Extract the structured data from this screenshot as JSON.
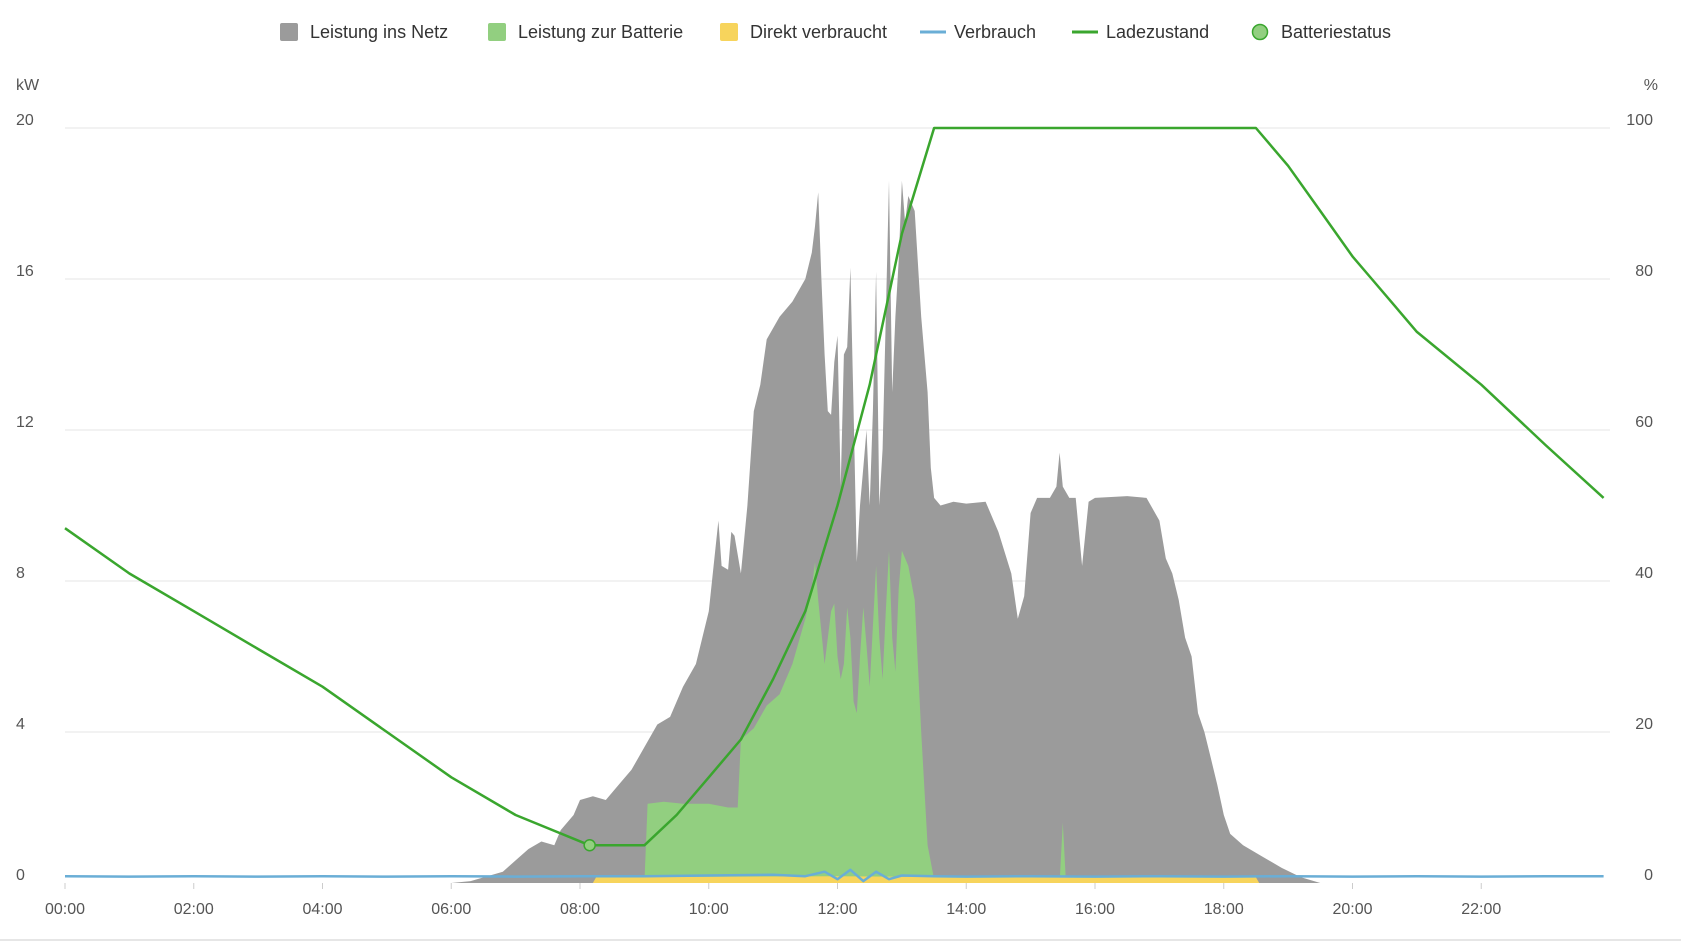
{
  "chart_data": {
    "type": "area",
    "x_unit": "time",
    "y_left": {
      "unit": "kW",
      "range": [
        0,
        20
      ],
      "ticks": [
        "0",
        "4",
        "8",
        "12",
        "16",
        "20"
      ]
    },
    "y_right": {
      "unit": "%",
      "range": [
        0,
        100
      ],
      "ticks": [
        "0",
        "20",
        "40",
        "60",
        "80",
        "100"
      ]
    },
    "x_range": [
      0,
      24
    ],
    "x_ticks": [
      "00:00",
      "02:00",
      "04:00",
      "06:00",
      "08:00",
      "10:00",
      "12:00",
      "14:00",
      "16:00",
      "18:00",
      "20:00",
      "22:00"
    ],
    "grid": true,
    "legend_placement": "top-center",
    "legend": [
      {
        "name": "Leistung ins Netz",
        "symbol": "square",
        "color": "#9b9b9b"
      },
      {
        "name": "Leistung zur Batterie",
        "symbol": "square",
        "color": "#92cf80"
      },
      {
        "name": "Direkt verbraucht",
        "symbol": "square",
        "color": "#f7d45c"
      },
      {
        "name": "Verbrauch",
        "symbol": "line",
        "color": "#6aaed6"
      },
      {
        "name": "Ladezustand",
        "symbol": "line",
        "color": "#3aa62e"
      },
      {
        "name": "Batteriestatus",
        "symbol": "circle",
        "color": "#92cf80"
      }
    ],
    "series": [
      {
        "name": "Leistung ins Netz",
        "axis": "left",
        "stack": "total",
        "points": [
          [
            6.0,
            0
          ],
          [
            6.3,
            0.05
          ],
          [
            6.6,
            0.2
          ],
          [
            6.8,
            0.3
          ],
          [
            7.0,
            0.6
          ],
          [
            7.2,
            0.9
          ],
          [
            7.4,
            1.1
          ],
          [
            7.6,
            1.0
          ],
          [
            7.7,
            1.4
          ],
          [
            7.9,
            1.8
          ],
          [
            8.0,
            2.2
          ],
          [
            8.2,
            2.3
          ],
          [
            8.4,
            2.2
          ],
          [
            8.6,
            2.6
          ],
          [
            8.8,
            3.0
          ],
          [
            9.0,
            3.6
          ],
          [
            9.2,
            4.2
          ],
          [
            9.4,
            4.4
          ],
          [
            9.6,
            5.2
          ],
          [
            9.8,
            5.8
          ],
          [
            10.0,
            7.2
          ],
          [
            10.1,
            8.8
          ],
          [
            10.15,
            9.6
          ],
          [
            10.2,
            8.4
          ],
          [
            10.3,
            8.3
          ],
          [
            10.35,
            9.3
          ],
          [
            10.4,
            9.2
          ],
          [
            10.5,
            8.2
          ],
          [
            10.6,
            10.0
          ],
          [
            10.7,
            12.5
          ],
          [
            10.8,
            13.2
          ],
          [
            10.9,
            14.4
          ],
          [
            11.1,
            15.0
          ],
          [
            11.3,
            15.4
          ],
          [
            11.5,
            16.0
          ],
          [
            11.6,
            16.7
          ],
          [
            11.65,
            17.4
          ],
          [
            11.7,
            18.3
          ],
          [
            11.75,
            16.0
          ],
          [
            11.8,
            14.0
          ],
          [
            11.85,
            12.5
          ],
          [
            11.9,
            12.4
          ],
          [
            11.95,
            13.8
          ],
          [
            12.0,
            14.5
          ],
          [
            12.05,
            10.5
          ],
          [
            12.1,
            14.0
          ],
          [
            12.15,
            14.2
          ],
          [
            12.2,
            16.3
          ],
          [
            12.25,
            12.5
          ],
          [
            12.3,
            8.5
          ],
          [
            12.35,
            10.0
          ],
          [
            12.4,
            11.0
          ],
          [
            12.45,
            12.0
          ],
          [
            12.5,
            10.0
          ],
          [
            12.55,
            12.5
          ],
          [
            12.6,
            16.2
          ],
          [
            12.65,
            10.0
          ],
          [
            12.7,
            11.5
          ],
          [
            12.75,
            15.0
          ],
          [
            12.8,
            18.6
          ],
          [
            12.85,
            13.0
          ],
          [
            12.9,
            15.0
          ],
          [
            12.95,
            16.5
          ],
          [
            13.0,
            18.6
          ],
          [
            13.05,
            17.5
          ],
          [
            13.1,
            18.2
          ],
          [
            13.2,
            17.8
          ],
          [
            13.3,
            15.0
          ],
          [
            13.4,
            13.0
          ],
          [
            13.45,
            11.0
          ],
          [
            13.5,
            10.2
          ],
          [
            13.6,
            10.0
          ],
          [
            13.8,
            10.1
          ],
          [
            14.0,
            10.05
          ],
          [
            14.3,
            10.1
          ],
          [
            14.5,
            9.3
          ],
          [
            14.7,
            8.2
          ],
          [
            14.8,
            7.0
          ],
          [
            14.9,
            7.6
          ],
          [
            15.0,
            9.8
          ],
          [
            15.1,
            10.2
          ],
          [
            15.3,
            10.2
          ],
          [
            15.4,
            10.5
          ],
          [
            15.45,
            11.4
          ],
          [
            15.5,
            10.5
          ],
          [
            15.6,
            10.2
          ],
          [
            15.7,
            10.2
          ],
          [
            15.8,
            8.4
          ],
          [
            15.9,
            10.1
          ],
          [
            16.0,
            10.2
          ],
          [
            16.5,
            10.25
          ],
          [
            16.8,
            10.2
          ],
          [
            17.0,
            9.6
          ],
          [
            17.1,
            8.6
          ],
          [
            17.2,
            8.2
          ],
          [
            17.3,
            7.5
          ],
          [
            17.4,
            6.5
          ],
          [
            17.5,
            6.0
          ],
          [
            17.6,
            4.5
          ],
          [
            17.7,
            4.0
          ],
          [
            17.8,
            3.3
          ],
          [
            17.9,
            2.6
          ],
          [
            18.0,
            1.8
          ],
          [
            18.1,
            1.3
          ],
          [
            18.3,
            1.0
          ],
          [
            18.6,
            0.7
          ],
          [
            18.9,
            0.4
          ],
          [
            19.2,
            0.15
          ],
          [
            19.5,
            0
          ]
        ]
      },
      {
        "name": "Leistung zur Batterie",
        "axis": "left",
        "stack": "top",
        "points": [
          [
            9.0,
            0
          ],
          [
            9.05,
            2.1
          ],
          [
            9.3,
            2.15
          ],
          [
            9.6,
            2.1
          ],
          [
            10.0,
            2.1
          ],
          [
            10.3,
            2.0
          ],
          [
            10.45,
            2.0
          ],
          [
            10.5,
            3.8
          ],
          [
            10.7,
            4.1
          ],
          [
            10.9,
            4.7
          ],
          [
            11.1,
            5.0
          ],
          [
            11.3,
            5.8
          ],
          [
            11.5,
            7.0
          ],
          [
            11.6,
            7.8
          ],
          [
            11.65,
            8.5
          ],
          [
            11.7,
            7.5
          ],
          [
            11.8,
            5.8
          ],
          [
            11.9,
            7.2
          ],
          [
            11.95,
            7.4
          ],
          [
            12.0,
            6.0
          ],
          [
            12.05,
            5.4
          ],
          [
            12.1,
            5.8
          ],
          [
            12.15,
            7.3
          ],
          [
            12.2,
            6.5
          ],
          [
            12.25,
            4.8
          ],
          [
            12.3,
            4.5
          ],
          [
            12.35,
            6.0
          ],
          [
            12.4,
            7.3
          ],
          [
            12.45,
            6.3
          ],
          [
            12.5,
            5.2
          ],
          [
            12.6,
            8.4
          ],
          [
            12.65,
            6.5
          ],
          [
            12.7,
            5.4
          ],
          [
            12.75,
            7.2
          ],
          [
            12.8,
            8.8
          ],
          [
            12.85,
            6.5
          ],
          [
            12.9,
            5.6
          ],
          [
            12.95,
            7.8
          ],
          [
            13.0,
            8.8
          ],
          [
            13.1,
            8.4
          ],
          [
            13.2,
            7.5
          ],
          [
            13.3,
            4.0
          ],
          [
            13.4,
            1.0
          ],
          [
            13.5,
            0.1
          ],
          [
            13.6,
            0
          ],
          [
            15.45,
            0
          ],
          [
            15.5,
            1.6
          ],
          [
            15.55,
            0
          ],
          [
            15.6,
            0
          ]
        ]
      },
      {
        "name": "Direkt verbraucht",
        "axis": "left",
        "stack": "base",
        "points": [
          [
            8.2,
            0
          ],
          [
            8.25,
            0.15
          ],
          [
            12.0,
            0.18
          ],
          [
            14.0,
            0.15
          ],
          [
            16.0,
            0.15
          ],
          [
            18.5,
            0.15
          ],
          [
            18.55,
            0
          ]
        ]
      },
      {
        "name": "Verbrauch",
        "axis": "left",
        "points": [
          [
            0,
            0.18
          ],
          [
            1,
            0.17
          ],
          [
            2,
            0.18
          ],
          [
            3,
            0.17
          ],
          [
            4,
            0.18
          ],
          [
            5,
            0.17
          ],
          [
            6,
            0.18
          ],
          [
            7,
            0.17
          ],
          [
            8,
            0.18
          ],
          [
            9,
            0.18
          ],
          [
            10,
            0.2
          ],
          [
            11,
            0.22
          ],
          [
            11.5,
            0.18
          ],
          [
            11.8,
            0.3
          ],
          [
            12.0,
            0.1
          ],
          [
            12.2,
            0.35
          ],
          [
            12.4,
            0.05
          ],
          [
            12.6,
            0.3
          ],
          [
            12.8,
            0.1
          ],
          [
            13.0,
            0.2
          ],
          [
            13.5,
            0.18
          ],
          [
            14,
            0.17
          ],
          [
            15,
            0.18
          ],
          [
            16,
            0.17
          ],
          [
            17,
            0.18
          ],
          [
            18,
            0.17
          ],
          [
            19,
            0.18
          ],
          [
            20,
            0.17
          ],
          [
            21,
            0.18
          ],
          [
            22,
            0.17
          ],
          [
            23,
            0.18
          ],
          [
            23.9,
            0.18
          ]
        ]
      },
      {
        "name": "Ladezustand",
        "axis": "right",
        "points": [
          [
            0,
            47
          ],
          [
            1,
            41
          ],
          [
            2,
            36
          ],
          [
            3,
            31
          ],
          [
            4,
            26
          ],
          [
            5,
            20
          ],
          [
            6,
            14
          ],
          [
            7,
            9
          ],
          [
            8.15,
            5
          ],
          [
            9.0,
            5
          ],
          [
            9.5,
            9
          ],
          [
            10.0,
            14
          ],
          [
            10.5,
            19
          ],
          [
            11.0,
            27
          ],
          [
            11.5,
            36
          ],
          [
            12.0,
            50
          ],
          [
            12.5,
            66
          ],
          [
            13.0,
            86
          ],
          [
            13.5,
            100
          ],
          [
            18.5,
            100
          ],
          [
            19.0,
            95
          ],
          [
            19.5,
            89
          ],
          [
            20.0,
            83
          ],
          [
            20.3,
            80
          ],
          [
            21.0,
            73
          ],
          [
            22.0,
            66
          ],
          [
            23.0,
            58
          ],
          [
            23.9,
            51
          ]
        ]
      },
      {
        "name": "Batteriestatus",
        "axis": "right",
        "points": [
          [
            8.15,
            5
          ]
        ]
      }
    ]
  }
}
